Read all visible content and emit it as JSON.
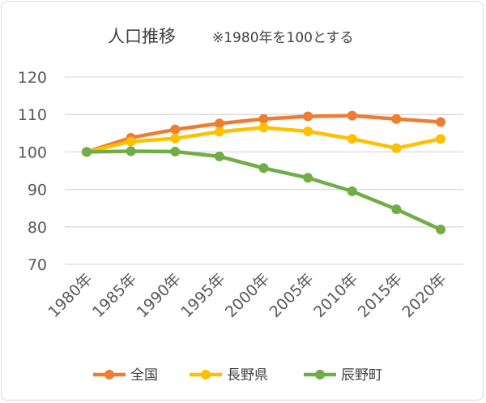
{
  "chart_data": {
    "type": "line",
    "title": "人口推移",
    "subtitle": "※1980年を100とする",
    "xlabel": "",
    "ylabel": "",
    "categories": [
      "1980年",
      "1985年",
      "1990年",
      "1995年",
      "2000年",
      "2005年",
      "2010年",
      "2015年",
      "2020年"
    ],
    "ylim": [
      70,
      120
    ],
    "yticks": [
      70,
      80,
      90,
      100,
      110,
      120
    ],
    "grid": true,
    "legend_position": "bottom",
    "series": [
      {
        "name": "全国",
        "color": "#ED7D31",
        "values": [
          100,
          103.8,
          106.0,
          107.6,
          108.8,
          109.5,
          109.7,
          108.8,
          108.0
        ]
      },
      {
        "name": "長野県",
        "color": "#FFC000",
        "values": [
          100,
          102.8,
          103.6,
          105.4,
          106.5,
          105.5,
          103.5,
          101.0,
          103.5
        ]
      },
      {
        "name": "辰野町",
        "color": "#70AD47",
        "values": [
          100,
          100.2,
          100.1,
          98.8,
          95.7,
          93.1,
          89.5,
          84.7,
          79.3
        ]
      }
    ]
  }
}
